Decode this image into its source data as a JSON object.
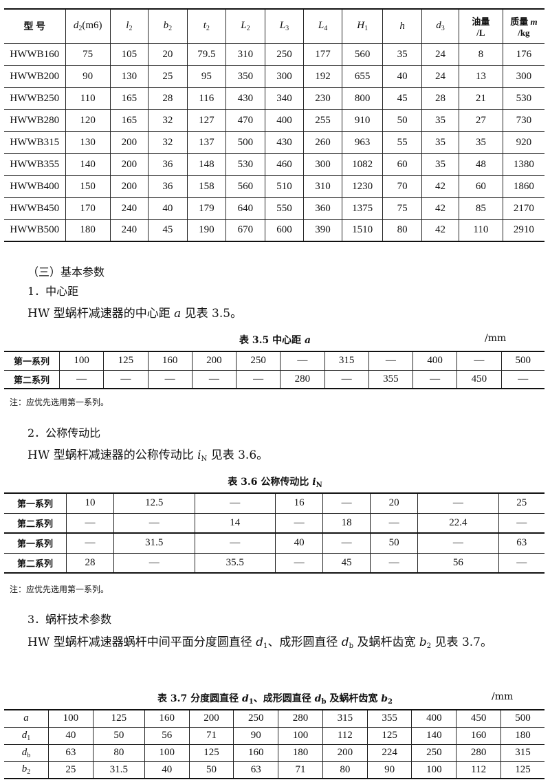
{
  "table_main": {
    "headers": [
      {
        "t": "型 号"
      },
      {
        "v": "d",
        "sub": "2",
        "suf": "(m6)"
      },
      {
        "v": "l",
        "sub": "2"
      },
      {
        "v": "b",
        "sub": "2"
      },
      {
        "v": "t",
        "sub": "2"
      },
      {
        "v": "L",
        "sub": "2"
      },
      {
        "v": "L",
        "sub": "3"
      },
      {
        "v": "L",
        "sub": "4"
      },
      {
        "v": "H",
        "sub": "1"
      },
      {
        "v": "h"
      },
      {
        "v": "d",
        "sub": "3"
      },
      {
        "t": "油量",
        "t2": "/L"
      },
      {
        "t": "质量 ",
        "v": "m",
        "t2": "/kg"
      }
    ],
    "rows": [
      [
        "HWWB160",
        "75",
        "105",
        "20",
        "79.5",
        "310",
        "250",
        "177",
        "560",
        "35",
        "24",
        "8",
        "176"
      ],
      [
        "HWWB200",
        "90",
        "130",
        "25",
        "95",
        "350",
        "300",
        "192",
        "655",
        "40",
        "24",
        "13",
        "300"
      ],
      [
        "HWWB250",
        "110",
        "165",
        "28",
        "116",
        "430",
        "340",
        "230",
        "800",
        "45",
        "28",
        "21",
        "530"
      ],
      [
        "HWWB280",
        "120",
        "165",
        "32",
        "127",
        "470",
        "400",
        "255",
        "910",
        "50",
        "35",
        "27",
        "730"
      ],
      [
        "HWWB315",
        "130",
        "200",
        "32",
        "137",
        "500",
        "430",
        "260",
        "963",
        "55",
        "35",
        "35",
        "920"
      ],
      [
        "HWWB355",
        "140",
        "200",
        "36",
        "148",
        "530",
        "460",
        "300",
        "1082",
        "60",
        "35",
        "48",
        "1380"
      ],
      [
        "HWWB400",
        "150",
        "200",
        "36",
        "158",
        "560",
        "510",
        "310",
        "1230",
        "70",
        "42",
        "60",
        "1860"
      ],
      [
        "HWWB450",
        "170",
        "240",
        "40",
        "179",
        "640",
        "550",
        "360",
        "1375",
        "75",
        "42",
        "85",
        "2170"
      ],
      [
        "HWWB500",
        "180",
        "240",
        "45",
        "190",
        "670",
        "600",
        "390",
        "1510",
        "80",
        "42",
        "110",
        "2910"
      ]
    ]
  },
  "section3_heading": "（三）基本参数",
  "sub1_heading": "1．中心距",
  "sub1_text": [
    {
      "t": "HW 型蜗杆减速器的中心距 "
    },
    {
      "v": "a"
    },
    {
      "t": " 见表 3.5。"
    }
  ],
  "table35": {
    "caption": [
      {
        "t": "表 3.5  中心距 "
      },
      {
        "v": "a"
      }
    ],
    "unit": "/mm",
    "rows": [
      [
        "第一系列",
        "100",
        "125",
        "160",
        "200",
        "250",
        "—",
        "315",
        "—",
        "400",
        "—",
        "500"
      ],
      [
        "第二系列",
        "—",
        "—",
        "—",
        "—",
        "—",
        "280",
        "—",
        "355",
        "—",
        "450",
        "—"
      ]
    ],
    "note": "注：应优先选用第一系列。"
  },
  "sub2_heading": "2．公称传动比",
  "sub2_text": [
    {
      "t": "HW 型蜗杆减速器的公称传动比 "
    },
    {
      "v": "i",
      "sub": "N"
    },
    {
      "t": " 见表 3.6。"
    }
  ],
  "table36": {
    "caption": [
      {
        "t": "表 3.6      公称传动比 "
      },
      {
        "v": "i",
        "sub": "N"
      }
    ],
    "rows": [
      [
        "第一系列",
        "10",
        "12.5",
        "—",
        "16",
        "—",
        "20",
        "—",
        "25"
      ],
      [
        "第二系列",
        "—",
        "—",
        "14",
        "—",
        "18",
        "—",
        "22.4",
        "—"
      ],
      [
        "第一系列",
        "—",
        "31.5",
        "—",
        "40",
        "—",
        "50",
        "—",
        "63"
      ],
      [
        "第二系列",
        "28",
        "—",
        "35.5",
        "—",
        "45",
        "—",
        "56",
        "—"
      ]
    ],
    "note": "注：应优先选用第一系列。"
  },
  "sub3_heading": "3．蜗杆技术参数",
  "sub3_text": [
    {
      "t": "HW 型蜗杆减速器蜗杆中间平面分度圆直径 "
    },
    {
      "v": "d",
      "sub": "1"
    },
    {
      "t": "、成形圆直径 "
    },
    {
      "v": "d",
      "sub": "b"
    },
    {
      "t": " 及蜗杆齿宽 "
    },
    {
      "v": "b",
      "sub": "2"
    },
    {
      "t": " 见表 3.7。"
    }
  ],
  "table37": {
    "caption": [
      {
        "t": "表 3.7 分度圆直径 "
      },
      {
        "v": "d",
        "sub": "1"
      },
      {
        "t": "、成形圆直径 "
      },
      {
        "v": "d",
        "sub": "b"
      },
      {
        "t": " 及蜗杆齿宽 "
      },
      {
        "v": "b",
        "sub": "2"
      }
    ],
    "unit": "/mm",
    "row_heads": [
      {
        "v": "a"
      },
      {
        "v": "d",
        "sub": "1"
      },
      {
        "v": "d",
        "sub": "b"
      },
      {
        "v": "b",
        "sub": "2"
      }
    ],
    "rows": [
      [
        "100",
        "125",
        "160",
        "200",
        "250",
        "280",
        "315",
        "355",
        "400",
        "450",
        "500"
      ],
      [
        "40",
        "50",
        "56",
        "71",
        "90",
        "100",
        "112",
        "125",
        "140",
        "160",
        "180"
      ],
      [
        "63",
        "80",
        "100",
        "125",
        "160",
        "180",
        "200",
        "224",
        "250",
        "280",
        "315"
      ],
      [
        "25",
        "31.5",
        "40",
        "50",
        "63",
        "71",
        "80",
        "90",
        "100",
        "112",
        "125"
      ]
    ]
  }
}
